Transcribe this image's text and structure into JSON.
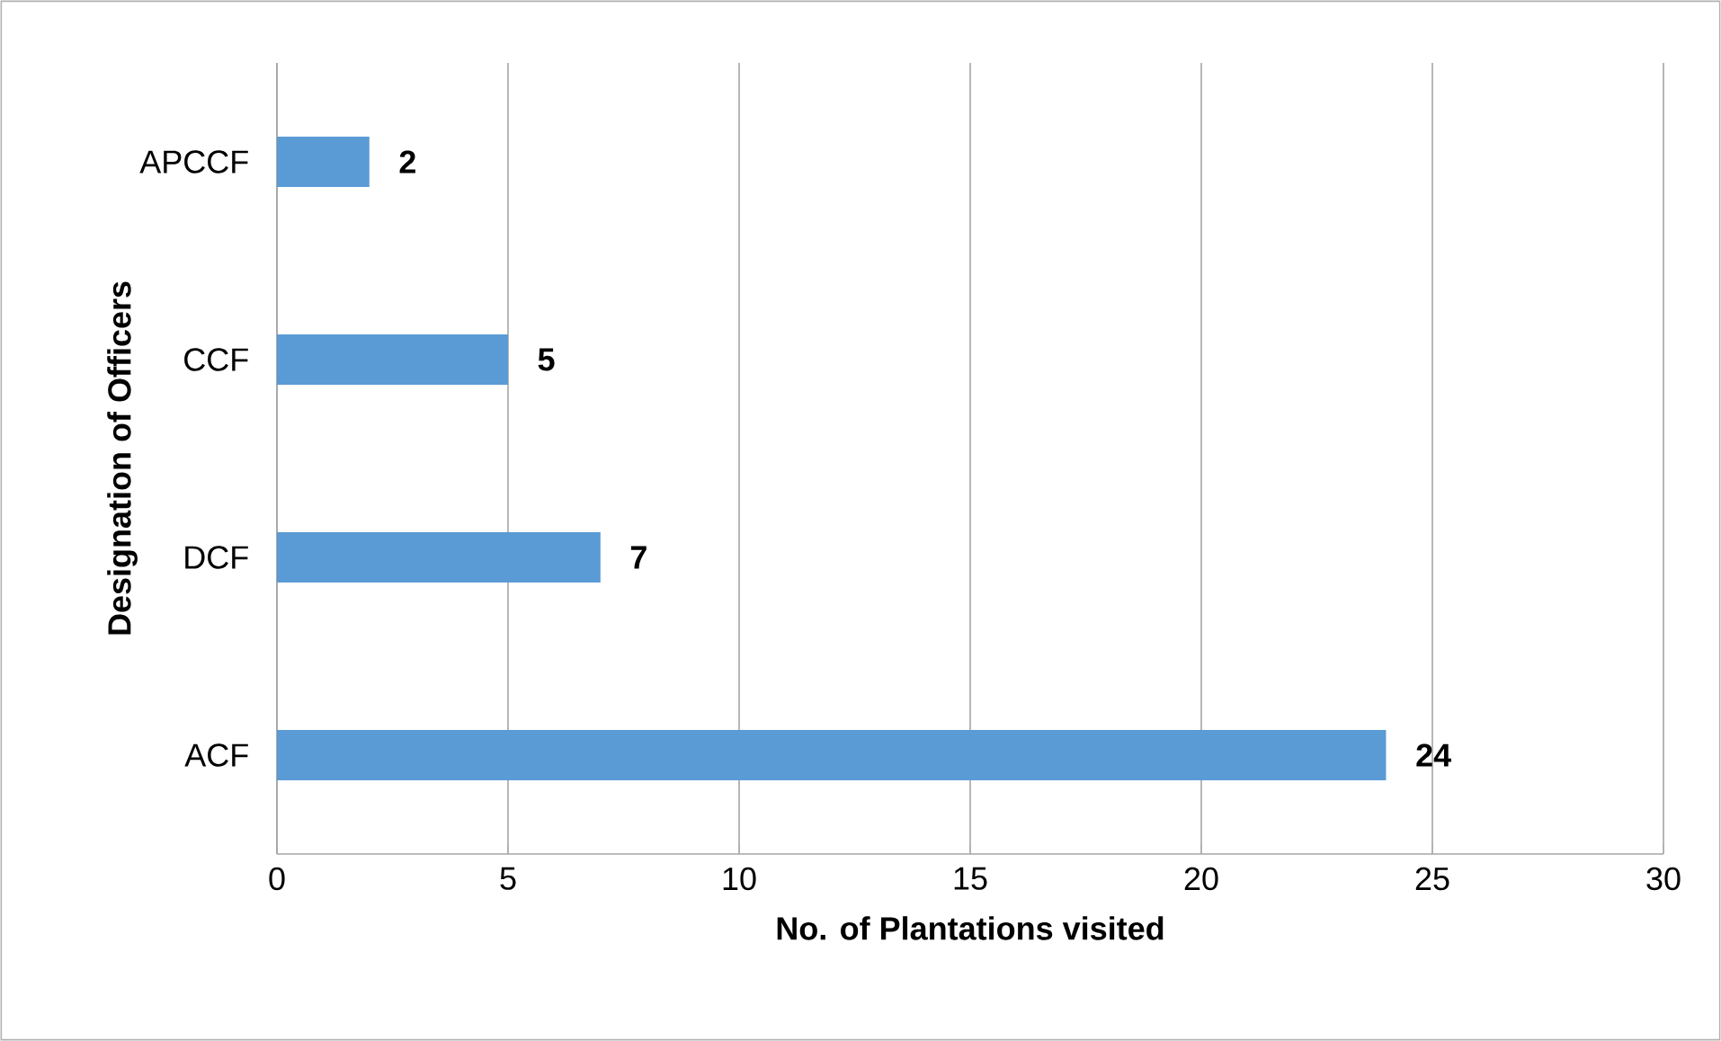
{
  "chart_data": {
    "type": "bar",
    "orientation": "horizontal",
    "xlabel": "No. of Plantations visited",
    "ylabel": "Designation of Officers",
    "categories": [
      "APCCF",
      "CCF",
      "DCF",
      "ACF"
    ],
    "values": [
      2,
      5,
      7,
      24
    ],
    "color": "#5b9bd5",
    "xlim": [
      0,
      30
    ],
    "xticks": [
      0,
      5,
      10,
      15,
      20,
      25,
      30
    ],
    "grid": "x",
    "data_labels": true
  }
}
